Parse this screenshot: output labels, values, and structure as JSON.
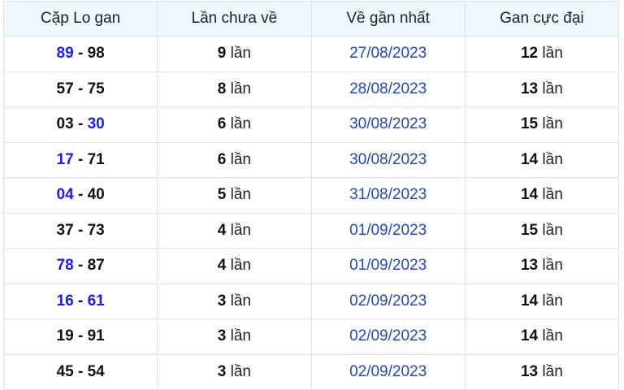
{
  "headers": [
    "Cặp Lo gan",
    "Lần chưa về",
    "Về gần nhất",
    "Gan cực đại"
  ],
  "unit": "lần",
  "highlight_color": "#1a1aff",
  "date_color": "#2448c4",
  "rows": [
    {
      "a": "89",
      "a_hi": true,
      "b": "98",
      "b_hi": false,
      "missed": "9",
      "last": "27/08/2023",
      "max": "12"
    },
    {
      "a": "57",
      "a_hi": false,
      "b": "75",
      "b_hi": false,
      "missed": "8",
      "last": "28/08/2023",
      "max": "13"
    },
    {
      "a": "03",
      "a_hi": false,
      "b": "30",
      "b_hi": true,
      "missed": "6",
      "last": "30/08/2023",
      "max": "15"
    },
    {
      "a": "17",
      "a_hi": true,
      "b": "71",
      "b_hi": false,
      "missed": "6",
      "last": "30/08/2023",
      "max": "14"
    },
    {
      "a": "04",
      "a_hi": true,
      "b": "40",
      "b_hi": false,
      "missed": "5",
      "last": "31/08/2023",
      "max": "14"
    },
    {
      "a": "37",
      "a_hi": false,
      "b": "73",
      "b_hi": false,
      "missed": "4",
      "last": "01/09/2023",
      "max": "15"
    },
    {
      "a": "78",
      "a_hi": true,
      "b": "87",
      "b_hi": false,
      "missed": "4",
      "last": "01/09/2023",
      "max": "13"
    },
    {
      "a": "16",
      "a_hi": true,
      "b": "61",
      "b_hi": true,
      "missed": "3",
      "last": "02/09/2023",
      "max": "14"
    },
    {
      "a": "19",
      "a_hi": false,
      "b": "91",
      "b_hi": false,
      "missed": "3",
      "last": "02/09/2023",
      "max": "14"
    },
    {
      "a": "45",
      "a_hi": false,
      "b": "54",
      "b_hi": false,
      "missed": "3",
      "last": "02/09/2023",
      "max": "13"
    }
  ]
}
